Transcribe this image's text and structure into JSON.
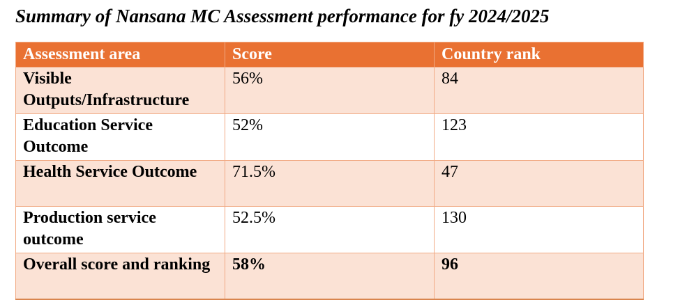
{
  "title": "Summary of Nansana MC Assessment performance for fy 2024/2025",
  "table": {
    "headers": [
      "Assessment area",
      "Score",
      "Country rank"
    ],
    "rows": [
      {
        "area": "Visible Outputs/Infrastructure",
        "score": "56%",
        "rank": "84"
      },
      {
        "area": "Education Service Outcome",
        "score": "52%",
        "rank": "123"
      },
      {
        "area": "Health Service Outcome",
        "score": "71.5%",
        "rank": "47"
      },
      {
        "area": "Production service outcome",
        "score": "52.5%",
        "rank": "130"
      },
      {
        "area": "Overall score and ranking",
        "score": "58%",
        "rank": "96"
      }
    ]
  },
  "colors": {
    "header_bg": "#E97132",
    "header_text": "#FFFFFF",
    "row_alt_bg": "#FBE2D5",
    "row_bg": "#FFFFFF",
    "border": "#F1A983",
    "outer_bottom_border": "#D9854E",
    "text": "#000000"
  }
}
